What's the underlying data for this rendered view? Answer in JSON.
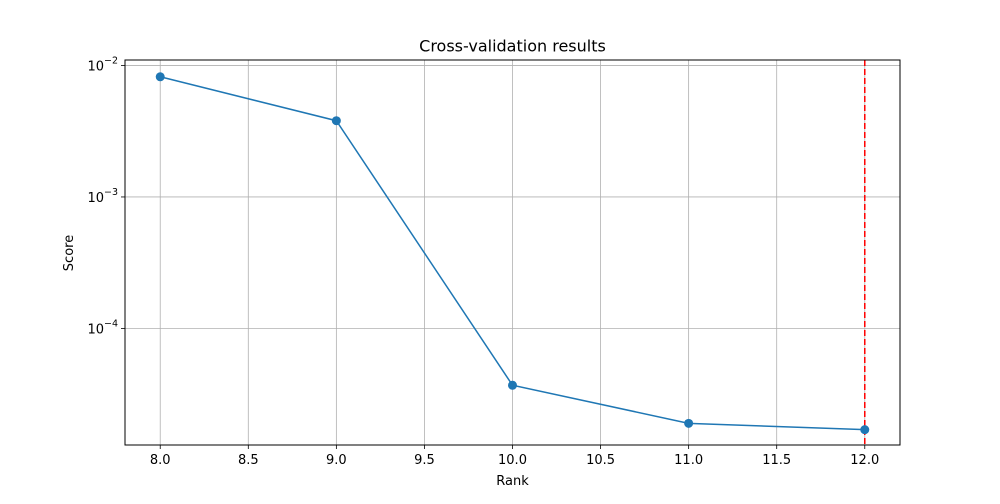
{
  "chart_data": {
    "type": "line",
    "title": "Cross-validation results",
    "xlabel": "Rank",
    "ylabel": "Score",
    "xlim": [
      7.8,
      12.2
    ],
    "ylim": [
      1.3e-05,
      0.011
    ],
    "yscale": "log",
    "grid": true,
    "x_ticks": [
      8.0,
      8.5,
      9.0,
      9.5,
      10.0,
      10.5,
      11.0,
      11.5,
      12.0
    ],
    "x_tick_labels": [
      "8.0",
      "8.5",
      "9.0",
      "9.5",
      "10.0",
      "10.5",
      "11.0",
      "11.5",
      "12.0"
    ],
    "y_ticks": [
      {
        "value": 0.01,
        "base": "10",
        "exp": "−2"
      },
      {
        "value": 0.001,
        "base": "10",
        "exp": "−3"
      },
      {
        "value": 0.0001,
        "base": "10",
        "exp": "−4"
      }
    ],
    "series": [
      {
        "x": [
          8,
          9,
          10,
          11,
          12
        ],
        "y": [
          0.0082,
          0.0038,
          3.7e-05,
          1.9e-05,
          1.7e-05
        ],
        "color": "#1f77b4",
        "marker": "circle"
      }
    ],
    "reference_line": {
      "x": 12,
      "color": "#ff0000",
      "style": "dashed"
    }
  }
}
